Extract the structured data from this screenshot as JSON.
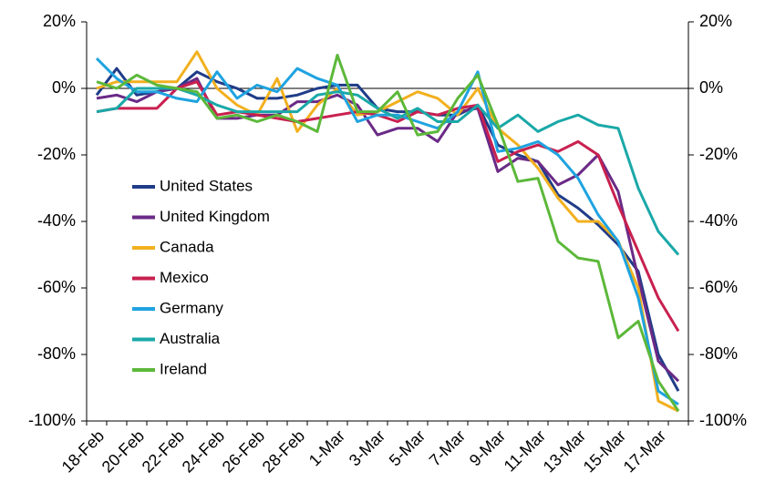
{
  "chart_data": {
    "type": "line",
    "categories": [
      "18-Feb",
      null,
      "20-Feb",
      null,
      "22-Feb",
      null,
      "24-Feb",
      null,
      "26-Feb",
      null,
      "28-Feb",
      null,
      "1-Mar",
      null,
      "3-Mar",
      null,
      "5-Mar",
      null,
      "7-Mar",
      null,
      "9-Mar",
      null,
      "11-Mar",
      null,
      "13-Mar",
      null,
      "15-Mar",
      null,
      "17-Mar",
      null
    ],
    "series": [
      {
        "name": "United States",
        "color": "#1f3c88",
        "values": [
          -2,
          6,
          -2,
          -1,
          0,
          5,
          2,
          0,
          -3,
          -3,
          -2,
          0,
          1,
          1,
          -6,
          -7,
          -7,
          -8,
          -8,
          -5,
          -17,
          -20,
          -22,
          -32,
          -36,
          -41,
          -47,
          -55,
          -80,
          -91
        ]
      },
      {
        "name": "United Kingdom",
        "color": "#6a2a86",
        "values": [
          -3,
          -2,
          -4,
          -1,
          0,
          3,
          -9,
          -9,
          -8,
          -8,
          -4,
          -4,
          -2,
          -5,
          -14,
          -12,
          -12,
          -16,
          -7,
          -6,
          -25,
          -21,
          -22,
          -29,
          -26,
          -20,
          -31,
          -57,
          -82,
          -88
        ]
      },
      {
        "name": "Canada",
        "color": "#f2b01e",
        "values": [
          0,
          2,
          2,
          2,
          2,
          11,
          0,
          -5,
          -8,
          3,
          -13,
          -5,
          0,
          -8,
          -7,
          -4,
          -1,
          -3,
          -8,
          0,
          -12,
          -17,
          -24,
          -33,
          -40,
          -40,
          -46,
          -60,
          -94,
          -97
        ]
      },
      {
        "name": "Mexico",
        "color": "#c8204f",
        "values": [
          -7,
          -6,
          -6,
          -6,
          0,
          2,
          -8,
          -7,
          -8,
          -9,
          -10,
          -9,
          -8,
          -7,
          -8,
          -10,
          -7,
          -8,
          -6,
          -5,
          -22,
          -19,
          -17,
          -19,
          -16,
          -20,
          -35,
          -49,
          -63,
          -73
        ]
      },
      {
        "name": "Germany",
        "color": "#1fa3e0",
        "values": [
          9,
          3,
          -1,
          -1,
          -3,
          -4,
          5,
          -3,
          1,
          -1,
          6,
          3,
          1,
          -10,
          -8,
          -8,
          -10,
          -12,
          -7,
          5,
          -19,
          -18,
          -16,
          -20,
          -27,
          -38,
          -46,
          -63,
          -91,
          -95
        ]
      },
      {
        "name": "Australia",
        "color": "#1aa8a8",
        "values": [
          -7,
          -6,
          0,
          0,
          0,
          -2,
          -5,
          -7,
          -7,
          -7,
          -7,
          -2,
          -1,
          -2,
          -6,
          -9,
          -6,
          -10,
          -10,
          -5,
          -12,
          -8,
          -13,
          -10,
          -8,
          -11,
          -12,
          -30,
          -43,
          -50
        ]
      },
      {
        "name": "Ireland",
        "color": "#5cb83a",
        "values": [
          2,
          0,
          4,
          1,
          0,
          -1,
          -9,
          -8,
          -10,
          -8,
          -10,
          -13,
          10,
          -7,
          -7,
          -1,
          -14,
          -13,
          -3,
          4,
          -11,
          -28,
          -27,
          -46,
          -51,
          -52,
          -75,
          -70,
          -88,
          -97
        ]
      }
    ],
    "ylim": [
      -100,
      20
    ],
    "yticks": [
      {
        "value": 20,
        "label": "20%"
      },
      {
        "value": 0,
        "label": "0%"
      },
      {
        "value": -20,
        "label": "-20%"
      },
      {
        "value": -40,
        "label": "-40%"
      },
      {
        "value": -60,
        "label": "-60%"
      },
      {
        "value": -80,
        "label": "-80%"
      },
      {
        "value": -100,
        "label": "-100%"
      }
    ],
    "y2lim": [
      -100,
      20
    ],
    "y2ticks": [
      {
        "value": 20,
        "label": "20%"
      },
      {
        "value": 0,
        "label": "0%"
      },
      {
        "value": -20,
        "label": "-20%"
      },
      {
        "value": -40,
        "label": "-40%"
      },
      {
        "value": -60,
        "label": "-60%"
      },
      {
        "value": -80,
        "label": "-80%"
      },
      {
        "value": -100,
        "label": "-100%"
      }
    ],
    "legend": "left",
    "grid": false
  }
}
